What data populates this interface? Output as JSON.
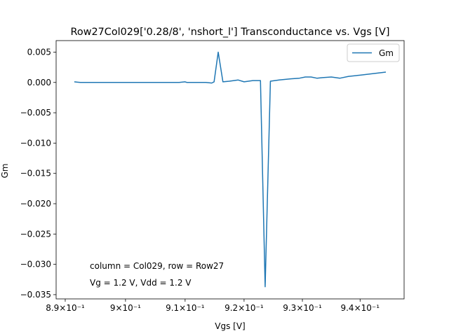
{
  "chart_data": {
    "type": "line",
    "title": "Row27Col029['0.28/8', 'nshort_l'] Transconductance vs. Vgs [V]",
    "xlabel": "Vgs [V]",
    "ylabel": "Gm",
    "x_scale": "log",
    "xlim": [
      0.8885,
      0.9477
    ],
    "ylim": [
      -0.0357,
      0.0069
    ],
    "x_ticks": [
      {
        "value": 0.89,
        "label": "8.9×10⁻¹"
      },
      {
        "value": 0.9,
        "label": "9×10⁻¹"
      },
      {
        "value": 0.91,
        "label": "9.1×10⁻¹"
      },
      {
        "value": 0.92,
        "label": "9.2×10⁻¹"
      },
      {
        "value": 0.93,
        "label": "9.3×10⁻¹"
      },
      {
        "value": 0.94,
        "label": "9.4×10⁻¹"
      }
    ],
    "y_ticks": [
      {
        "value": 0.005,
        "label": "0.005"
      },
      {
        "value": 0.0,
        "label": "0.000"
      },
      {
        "value": -0.005,
        "label": "−0.005"
      },
      {
        "value": -0.01,
        "label": "−0.010"
      },
      {
        "value": -0.015,
        "label": "−0.015"
      },
      {
        "value": -0.02,
        "label": "−0.020"
      },
      {
        "value": -0.025,
        "label": "−0.025"
      },
      {
        "value": -0.03,
        "label": "−0.030"
      },
      {
        "value": -0.035,
        "label": "−0.035"
      }
    ],
    "grid": false,
    "legend_position": "top-right",
    "series": [
      {
        "name": "Gm",
        "color": "#1f77b4",
        "x": [
          0.8915,
          0.892,
          0.8925,
          0.895,
          0.9,
          0.905,
          0.909,
          0.91,
          0.9103,
          0.912,
          0.9135,
          0.9145,
          0.9149,
          0.9156,
          0.9164,
          0.9175,
          0.919,
          0.92,
          0.9215,
          0.9228,
          0.9236,
          0.9245,
          0.926,
          0.928,
          0.9295,
          0.9305,
          0.9315,
          0.9325,
          0.9335,
          0.935,
          0.9365,
          0.938,
          0.94,
          0.9445
        ],
        "y": [
          0.0001,
          5e-05,
          0.0,
          0.0,
          0.0,
          0.0,
          0.0,
          0.0001,
          0.0,
          0.0,
          0.0,
          -0.0001,
          0.0001,
          0.005,
          0.0001,
          0.0002,
          0.0004,
          0.0001,
          0.0003,
          0.0003,
          -0.0337,
          0.0002,
          0.0004,
          0.0006,
          0.0007,
          0.0009,
          0.0009,
          0.0007,
          0.0008,
          0.0009,
          0.0007,
          0.001,
          0.0012,
          0.0017
        ]
      }
    ],
    "annotations": [
      "column = Col029, row = Row27",
      "Vg = 1.2 V, Vdd = 1.2 V"
    ]
  }
}
